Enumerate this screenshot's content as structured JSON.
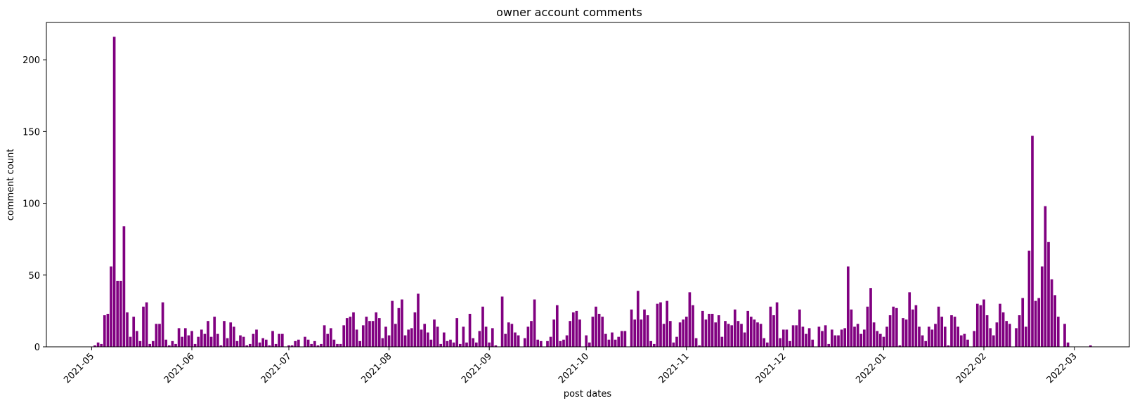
{
  "chart_data": {
    "type": "bar",
    "title": "owner account comments",
    "xlabel": "post dates",
    "ylabel": "comment count",
    "bar_color": "#800080",
    "x_range": [
      "2021-04-17",
      "2022-03-18"
    ],
    "ylim": [
      0,
      226
    ],
    "y_ticks": [
      0,
      50,
      100,
      150,
      200
    ],
    "x_ticks": [
      "2021-05-01",
      "2021-06-01",
      "2021-07-01",
      "2021-08-01",
      "2021-09-01",
      "2021-10-01",
      "2021-11-01",
      "2021-12-01",
      "2022-01-01",
      "2022-02-01",
      "2022-03-01"
    ],
    "x_tick_labels": [
      "2021-05",
      "2021-06",
      "2021-07",
      "2021-08",
      "2021-09",
      "2021-10",
      "2021-11",
      "2021-12",
      "2022-01",
      "2022-02",
      "2022-03"
    ],
    "grid": false,
    "points": [
      [
        "2021-05-02",
        1
      ],
      [
        "2021-05-03",
        3
      ],
      [
        "2021-05-04",
        2
      ],
      [
        "2021-05-05",
        22
      ],
      [
        "2021-05-06",
        23
      ],
      [
        "2021-05-07",
        56
      ],
      [
        "2021-05-08",
        216
      ],
      [
        "2021-05-09",
        46
      ],
      [
        "2021-05-10",
        46
      ],
      [
        "2021-05-11",
        84
      ],
      [
        "2021-05-12",
        24
      ],
      [
        "2021-05-13",
        7
      ],
      [
        "2021-05-14",
        21
      ],
      [
        "2021-05-15",
        11
      ],
      [
        "2021-05-16",
        4
      ],
      [
        "2021-05-17",
        28
      ],
      [
        "2021-05-18",
        31
      ],
      [
        "2021-05-19",
        2
      ],
      [
        "2021-05-20",
        4
      ],
      [
        "2021-05-21",
        16
      ],
      [
        "2021-05-22",
        16
      ],
      [
        "2021-05-23",
        31
      ],
      [
        "2021-05-24",
        5
      ],
      [
        "2021-05-25",
        1
      ],
      [
        "2021-05-26",
        4
      ],
      [
        "2021-05-27",
        2
      ],
      [
        "2021-05-28",
        13
      ],
      [
        "2021-05-29",
        7
      ],
      [
        "2021-05-30",
        13
      ],
      [
        "2021-05-31",
        8
      ],
      [
        "2021-06-01",
        11
      ],
      [
        "2021-06-02",
        2
      ],
      [
        "2021-06-03",
        7
      ],
      [
        "2021-06-04",
        12
      ],
      [
        "2021-06-05",
        9
      ],
      [
        "2021-06-06",
        18
      ],
      [
        "2021-06-07",
        7
      ],
      [
        "2021-06-08",
        21
      ],
      [
        "2021-06-09",
        9
      ],
      [
        "2021-06-10",
        1
      ],
      [
        "2021-06-11",
        18
      ],
      [
        "2021-06-12",
        6
      ],
      [
        "2021-06-13",
        17
      ],
      [
        "2021-06-14",
        14
      ],
      [
        "2021-06-15",
        4
      ],
      [
        "2021-06-16",
        8
      ],
      [
        "2021-06-17",
        7
      ],
      [
        "2021-06-18",
        1
      ],
      [
        "2021-06-19",
        2
      ],
      [
        "2021-06-20",
        9
      ],
      [
        "2021-06-21",
        12
      ],
      [
        "2021-06-22",
        3
      ],
      [
        "2021-06-23",
        6
      ],
      [
        "2021-06-24",
        5
      ],
      [
        "2021-06-25",
        1
      ],
      [
        "2021-06-26",
        11
      ],
      [
        "2021-06-27",
        2
      ],
      [
        "2021-06-28",
        9
      ],
      [
        "2021-06-29",
        9
      ],
      [
        "2021-07-01",
        1
      ],
      [
        "2021-07-02",
        1
      ],
      [
        "2021-07-03",
        4
      ],
      [
        "2021-07-04",
        5
      ],
      [
        "2021-07-06",
        7
      ],
      [
        "2021-07-07",
        5
      ],
      [
        "2021-07-08",
        2
      ],
      [
        "2021-07-09",
        4
      ],
      [
        "2021-07-10",
        1
      ],
      [
        "2021-07-11",
        2
      ],
      [
        "2021-07-12",
        15
      ],
      [
        "2021-07-13",
        9
      ],
      [
        "2021-07-14",
        13
      ],
      [
        "2021-07-15",
        5
      ],
      [
        "2021-07-16",
        2
      ],
      [
        "2021-07-17",
        2
      ],
      [
        "2021-07-18",
        15
      ],
      [
        "2021-07-19",
        20
      ],
      [
        "2021-07-20",
        21
      ],
      [
        "2021-07-21",
        24
      ],
      [
        "2021-07-22",
        12
      ],
      [
        "2021-07-23",
        4
      ],
      [
        "2021-07-24",
        15
      ],
      [
        "2021-07-25",
        21
      ],
      [
        "2021-07-26",
        18
      ],
      [
        "2021-07-27",
        18
      ],
      [
        "2021-07-28",
        24
      ],
      [
        "2021-07-29",
        20
      ],
      [
        "2021-07-30",
        6
      ],
      [
        "2021-07-31",
        14
      ],
      [
        "2021-08-01",
        8
      ],
      [
        "2021-08-02",
        32
      ],
      [
        "2021-08-03",
        16
      ],
      [
        "2021-08-04",
        27
      ],
      [
        "2021-08-05",
        33
      ],
      [
        "2021-08-06",
        8
      ],
      [
        "2021-08-07",
        12
      ],
      [
        "2021-08-08",
        13
      ],
      [
        "2021-08-09",
        24
      ],
      [
        "2021-08-10",
        37
      ],
      [
        "2021-08-11",
        12
      ],
      [
        "2021-08-12",
        16
      ],
      [
        "2021-08-13",
        10
      ],
      [
        "2021-08-14",
        5
      ],
      [
        "2021-08-15",
        19
      ],
      [
        "2021-08-16",
        14
      ],
      [
        "2021-08-17",
        2
      ],
      [
        "2021-08-18",
        10
      ],
      [
        "2021-08-19",
        4
      ],
      [
        "2021-08-20",
        5
      ],
      [
        "2021-08-21",
        3
      ],
      [
        "2021-08-22",
        20
      ],
      [
        "2021-08-23",
        2
      ],
      [
        "2021-08-24",
        14
      ],
      [
        "2021-08-25",
        3
      ],
      [
        "2021-08-26",
        23
      ],
      [
        "2021-08-27",
        6
      ],
      [
        "2021-08-28",
        3
      ],
      [
        "2021-08-29",
        11
      ],
      [
        "2021-08-30",
        28
      ],
      [
        "2021-08-31",
        14
      ],
      [
        "2021-09-01",
        3
      ],
      [
        "2021-09-02",
        13
      ],
      [
        "2021-09-03",
        1
      ],
      [
        "2021-09-05",
        35
      ],
      [
        "2021-09-06",
        9
      ],
      [
        "2021-09-07",
        17
      ],
      [
        "2021-09-08",
        16
      ],
      [
        "2021-09-09",
        10
      ],
      [
        "2021-09-10",
        8
      ],
      [
        "2021-09-12",
        6
      ],
      [
        "2021-09-13",
        14
      ],
      [
        "2021-09-14",
        18
      ],
      [
        "2021-09-15",
        33
      ],
      [
        "2021-09-16",
        5
      ],
      [
        "2021-09-17",
        4
      ],
      [
        "2021-09-19",
        4
      ],
      [
        "2021-09-20",
        7
      ],
      [
        "2021-09-21",
        19
      ],
      [
        "2021-09-22",
        29
      ],
      [
        "2021-09-23",
        4
      ],
      [
        "2021-09-24",
        5
      ],
      [
        "2021-09-25",
        8
      ],
      [
        "2021-09-26",
        18
      ],
      [
        "2021-09-27",
        24
      ],
      [
        "2021-09-28",
        25
      ],
      [
        "2021-09-29",
        19
      ],
      [
        "2021-10-01",
        8
      ],
      [
        "2021-10-02",
        3
      ],
      [
        "2021-10-03",
        21
      ],
      [
        "2021-10-04",
        28
      ],
      [
        "2021-10-05",
        23
      ],
      [
        "2021-10-06",
        21
      ],
      [
        "2021-10-07",
        9
      ],
      [
        "2021-10-08",
        5
      ],
      [
        "2021-10-09",
        10
      ],
      [
        "2021-10-10",
        5
      ],
      [
        "2021-10-11",
        7
      ],
      [
        "2021-10-12",
        11
      ],
      [
        "2021-10-13",
        11
      ],
      [
        "2021-10-15",
        26
      ],
      [
        "2021-10-16",
        19
      ],
      [
        "2021-10-17",
        39
      ],
      [
        "2021-10-18",
        19
      ],
      [
        "2021-10-19",
        26
      ],
      [
        "2021-10-20",
        22
      ],
      [
        "2021-10-21",
        4
      ],
      [
        "2021-10-22",
        2
      ],
      [
        "2021-10-23",
        30
      ],
      [
        "2021-10-24",
        31
      ],
      [
        "2021-10-25",
        16
      ],
      [
        "2021-10-26",
        32
      ],
      [
        "2021-10-27",
        18
      ],
      [
        "2021-10-28",
        3
      ],
      [
        "2021-10-29",
        7
      ],
      [
        "2021-10-30",
        17
      ],
      [
        "2021-10-31",
        19
      ],
      [
        "2021-11-01",
        21
      ],
      [
        "2021-11-02",
        38
      ],
      [
        "2021-11-03",
        29
      ],
      [
        "2021-11-04",
        6
      ],
      [
        "2021-11-05",
        1
      ],
      [
        "2021-11-06",
        25
      ],
      [
        "2021-11-07",
        19
      ],
      [
        "2021-11-08",
        23
      ],
      [
        "2021-11-09",
        23
      ],
      [
        "2021-11-10",
        17
      ],
      [
        "2021-11-11",
        22
      ],
      [
        "2021-11-12",
        7
      ],
      [
        "2021-11-13",
        18
      ],
      [
        "2021-11-14",
        16
      ],
      [
        "2021-11-15",
        15
      ],
      [
        "2021-11-16",
        26
      ],
      [
        "2021-11-17",
        18
      ],
      [
        "2021-11-18",
        16
      ],
      [
        "2021-11-19",
        10
      ],
      [
        "2021-11-20",
        25
      ],
      [
        "2021-11-21",
        21
      ],
      [
        "2021-11-22",
        19
      ],
      [
        "2021-11-23",
        17
      ],
      [
        "2021-11-24",
        16
      ],
      [
        "2021-11-25",
        6
      ],
      [
        "2021-11-26",
        3
      ],
      [
        "2021-11-27",
        28
      ],
      [
        "2021-11-28",
        22
      ],
      [
        "2021-11-29",
        31
      ],
      [
        "2021-11-30",
        6
      ],
      [
        "2021-12-01",
        12
      ],
      [
        "2021-12-02",
        12
      ],
      [
        "2021-12-03",
        4
      ],
      [
        "2021-12-04",
        15
      ],
      [
        "2021-12-05",
        15
      ],
      [
        "2021-12-06",
        26
      ],
      [
        "2021-12-07",
        14
      ],
      [
        "2021-12-08",
        9
      ],
      [
        "2021-12-09",
        13
      ],
      [
        "2021-12-10",
        5
      ],
      [
        "2021-12-12",
        14
      ],
      [
        "2021-12-13",
        11
      ],
      [
        "2021-12-14",
        15
      ],
      [
        "2021-12-15",
        2
      ],
      [
        "2021-12-16",
        12
      ],
      [
        "2021-12-17",
        8
      ],
      [
        "2021-12-18",
        8
      ],
      [
        "2021-12-19",
        12
      ],
      [
        "2021-12-20",
        13
      ],
      [
        "2021-12-21",
        56
      ],
      [
        "2021-12-22",
        26
      ],
      [
        "2021-12-23",
        14
      ],
      [
        "2021-12-24",
        16
      ],
      [
        "2021-12-25",
        9
      ],
      [
        "2021-12-26",
        12
      ],
      [
        "2021-12-27",
        28
      ],
      [
        "2021-12-28",
        41
      ],
      [
        "2021-12-29",
        17
      ],
      [
        "2021-12-30",
        11
      ],
      [
        "2021-12-31",
        9
      ],
      [
        "2022-01-01",
        7
      ],
      [
        "2022-01-02",
        14
      ],
      [
        "2022-01-03",
        22
      ],
      [
        "2022-01-04",
        28
      ],
      [
        "2022-01-05",
        27
      ],
      [
        "2022-01-06",
        1
      ],
      [
        "2022-01-07",
        20
      ],
      [
        "2022-01-08",
        19
      ],
      [
        "2022-01-09",
        38
      ],
      [
        "2022-01-10",
        26
      ],
      [
        "2022-01-11",
        29
      ],
      [
        "2022-01-12",
        14
      ],
      [
        "2022-01-13",
        8
      ],
      [
        "2022-01-14",
        4
      ],
      [
        "2022-01-15",
        14
      ],
      [
        "2022-01-16",
        12
      ],
      [
        "2022-01-17",
        16
      ],
      [
        "2022-01-18",
        28
      ],
      [
        "2022-01-19",
        21
      ],
      [
        "2022-01-20",
        14
      ],
      [
        "2022-01-21",
        1
      ],
      [
        "2022-01-22",
        22
      ],
      [
        "2022-01-23",
        21
      ],
      [
        "2022-01-24",
        14
      ],
      [
        "2022-01-25",
        8
      ],
      [
        "2022-01-26",
        9
      ],
      [
        "2022-01-27",
        5
      ],
      [
        "2022-01-29",
        11
      ],
      [
        "2022-01-30",
        30
      ],
      [
        "2022-01-31",
        29
      ],
      [
        "2022-02-01",
        33
      ],
      [
        "2022-02-02",
        22
      ],
      [
        "2022-02-03",
        13
      ],
      [
        "2022-02-04",
        8
      ],
      [
        "2022-02-05",
        17
      ],
      [
        "2022-02-06",
        30
      ],
      [
        "2022-02-07",
        24
      ],
      [
        "2022-02-08",
        18
      ],
      [
        "2022-02-09",
        16
      ],
      [
        "2022-02-11",
        13
      ],
      [
        "2022-02-12",
        22
      ],
      [
        "2022-02-13",
        34
      ],
      [
        "2022-02-14",
        14
      ],
      [
        "2022-02-15",
        67
      ],
      [
        "2022-02-16",
        147
      ],
      [
        "2022-02-17",
        32
      ],
      [
        "2022-02-18",
        34
      ],
      [
        "2022-02-19",
        56
      ],
      [
        "2022-02-20",
        98
      ],
      [
        "2022-02-21",
        73
      ],
      [
        "2022-02-22",
        47
      ],
      [
        "2022-02-23",
        36
      ],
      [
        "2022-02-24",
        21
      ],
      [
        "2022-02-26",
        16
      ],
      [
        "2022-02-27",
        3
      ],
      [
        "2022-03-06",
        1
      ]
    ]
  }
}
